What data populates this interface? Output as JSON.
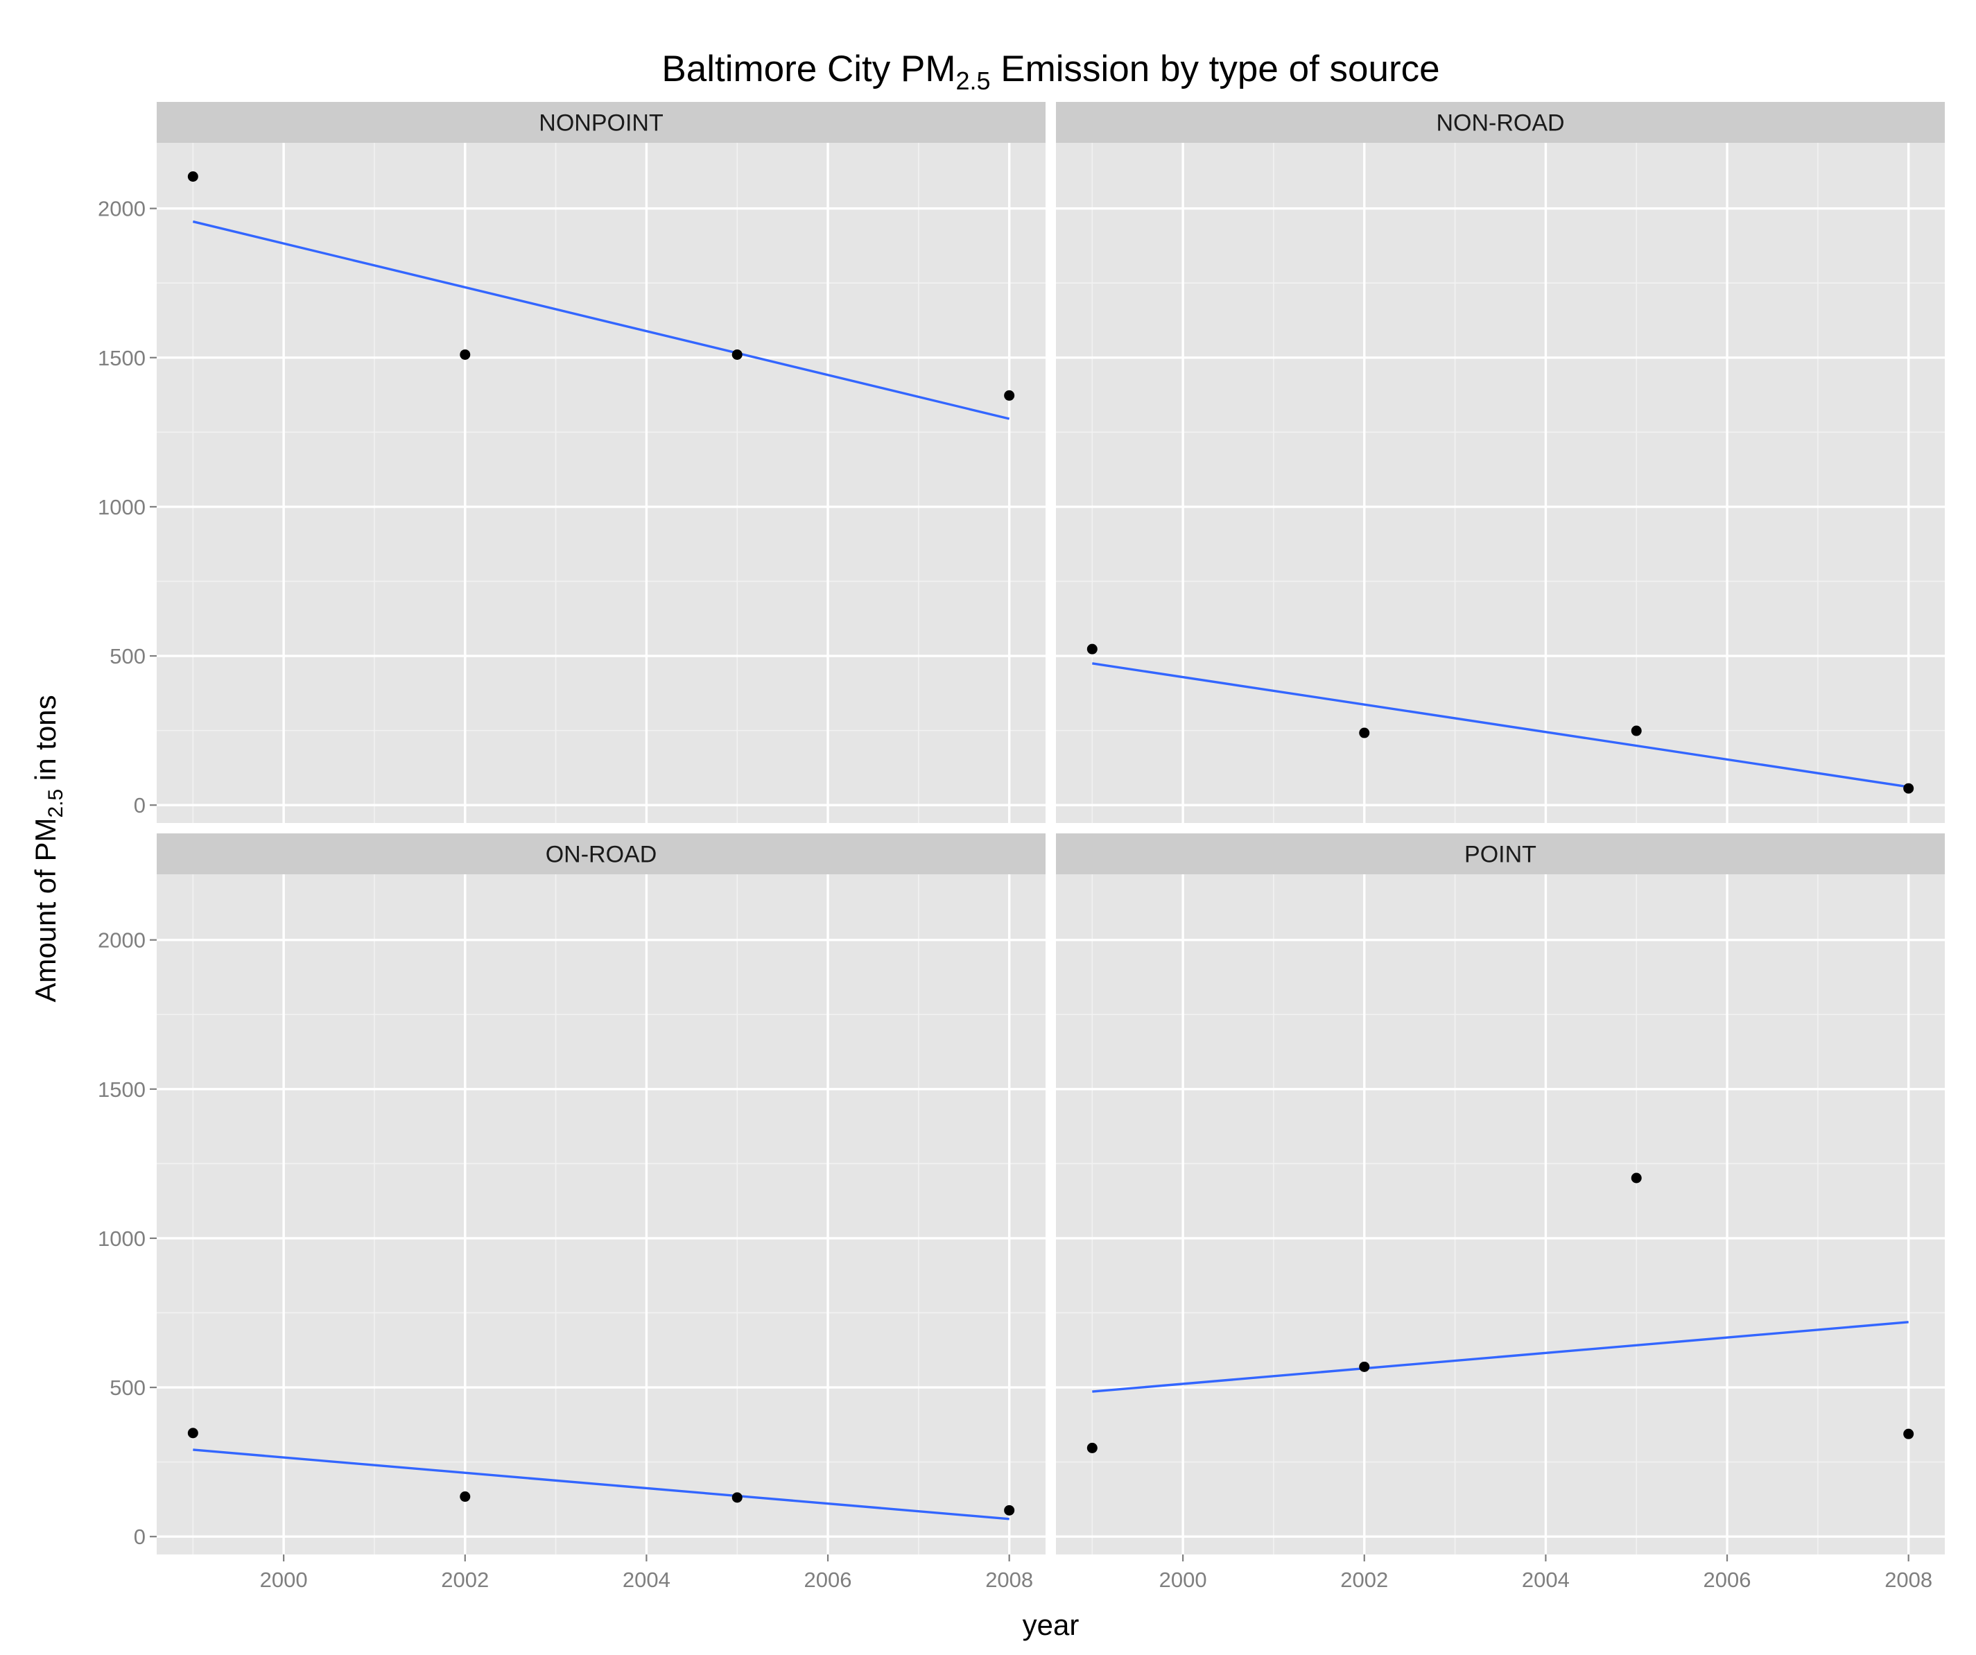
{
  "chart_data": {
    "type": "scatter",
    "title": {
      "prefix": "Baltimore City PM",
      "subscript": "2.5",
      "suffix": " Emission by type of source"
    },
    "xlabel": "year",
    "ylabel": {
      "prefix": "Amount of PM",
      "subscript": "2.5",
      "suffix": " in tons"
    },
    "xlim": [
      1998.6,
      2008.4
    ],
    "ylim": [
      -60,
      2220
    ],
    "x_ticks": [
      2000,
      2002,
      2004,
      2006,
      2008
    ],
    "y_ticks": [
      0,
      500,
      1000,
      1500,
      2000
    ],
    "grid": true,
    "point_color": "#000000",
    "trend_color": "#3366ff",
    "panel_color": "#e5e5e5",
    "strip_color": "#cccccc",
    "facets": [
      {
        "name": "NONPOINT",
        "x": [
          1999,
          2002,
          2005,
          2008
        ],
        "y": [
          2107,
          1510,
          1510,
          1373
        ],
        "trend": [
          [
            1999,
            1956
          ],
          [
            2008,
            1295
          ]
        ]
      },
      {
        "name": "NON-ROAD",
        "x": [
          1999,
          2002,
          2005,
          2008
        ],
        "y": [
          523,
          242,
          249,
          56
        ],
        "trend": [
          [
            1999,
            475
          ],
          [
            2008,
            61
          ]
        ]
      },
      {
        "name": "ON-ROAD",
        "x": [
          1999,
          2002,
          2005,
          2008
        ],
        "y": [
          347,
          134,
          131,
          88
        ],
        "trend": [
          [
            1999,
            291
          ],
          [
            2008,
            59
          ]
        ]
      },
      {
        "name": "POINT",
        "x": [
          1999,
          2002,
          2005,
          2008
        ],
        "y": [
          297,
          569,
          1202,
          344
        ],
        "trend": [
          [
            1999,
            486
          ],
          [
            2008,
            719
          ]
        ]
      }
    ]
  }
}
